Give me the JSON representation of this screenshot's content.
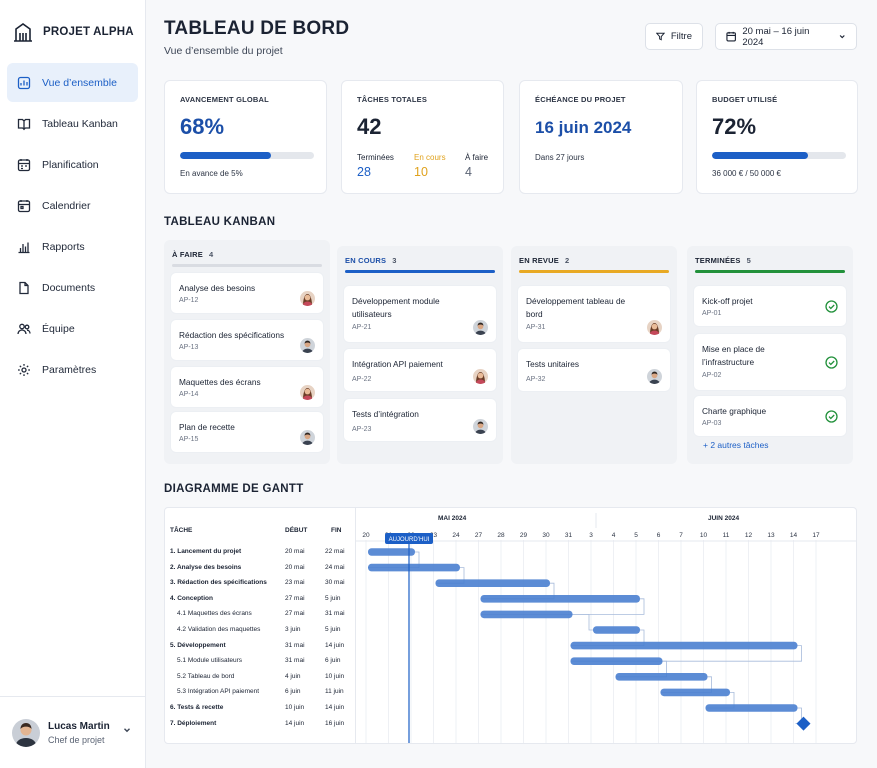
{
  "brand": {
    "name": "PROJET ALPHA",
    "logo_icon": "building-icon"
  },
  "nav": [
    {
      "label": "Vue d’ensemble",
      "icon": "dashboard-icon",
      "active": true
    },
    {
      "label": "Tableau Kanban",
      "icon": "book-icon",
      "active": false
    },
    {
      "label": "Planification",
      "icon": "planning-icon",
      "active": false
    },
    {
      "label": "Calendrier",
      "icon": "calendar-icon",
      "active": false
    },
    {
      "label": "Rapports",
      "icon": "bar-chart-icon",
      "active": false
    },
    {
      "label": "Documents",
      "icon": "document-icon",
      "active": false
    },
    {
      "label": "Équipe",
      "icon": "team-icon",
      "active": false
    },
    {
      "label": "Paramètres",
      "icon": "gear-icon",
      "active": false
    }
  ],
  "user": {
    "name": "Lucas Martin",
    "role": "Chef de projet"
  },
  "header": {
    "title": "TABLEAU DE BORD",
    "subtitle": "Vue d’ensemble du projet",
    "filter_label": "Filtre",
    "date_range": "20 mai – 16 juin 2024"
  },
  "cards": {
    "progress": {
      "label": "AVANCEMENT GLOBAL",
      "value": "68%",
      "fraction": 0.68,
      "note": "En avance de 5%"
    },
    "tasks": {
      "label": "TÂCHES TOTALES",
      "value": "42",
      "stats": [
        {
          "label": "Terminées",
          "value": "28",
          "color": "#1c5fc6"
        },
        {
          "label": "En cours",
          "value": "10",
          "color": "#e0a21d"
        },
        {
          "label": "À faire",
          "value": "4",
          "color": "#5b6474"
        }
      ]
    },
    "deadline": {
      "label": "ÉCHÉANCE DU PROJET",
      "value": "16 juin 2024",
      "note": "Dans 27 jours"
    },
    "budget": {
      "label": "BUDGET UTILISÉ",
      "value": "72%",
      "fraction": 0.72,
      "note": "36 000 € / 50 000 €"
    }
  },
  "kanban": {
    "title": "TABLEAU KANBAN",
    "columns": [
      {
        "title": "À FAIRE",
        "count": "4",
        "color": "#d9dce2",
        "title_color": "#1b2333",
        "cards": [
          {
            "title": "Analyse des besoins",
            "id": "AP-12",
            "assignee": "woman"
          },
          {
            "title": "Rédaction des spécifications",
            "id": "AP-13",
            "assignee": "man"
          },
          {
            "title": "Maquettes des écrans",
            "id": "AP-14",
            "assignee": "woman"
          },
          {
            "title": "Plan de recette",
            "id": "AP-15",
            "assignee": "man"
          }
        ]
      },
      {
        "title": "EN COURS",
        "count": "3",
        "color": "#1c5fc6",
        "title_color": "#1c4fa8",
        "cards": [
          {
            "title": "Développement module utilisateurs",
            "id": "AP-21",
            "assignee": "man"
          },
          {
            "title": "Intégration API paiement",
            "id": "AP-22",
            "assignee": "woman"
          },
          {
            "title": "Tests d’intégration",
            "id": "AP-23",
            "assignee": "man"
          }
        ]
      },
      {
        "title": "EN REVUE",
        "count": "2",
        "color": "#e8a923",
        "title_color": "#1b2333",
        "cards": [
          {
            "title": "Développement tableau de bord",
            "id": "AP-31",
            "assignee": "woman"
          },
          {
            "title": "Tests unitaires",
            "id": "AP-32",
            "assignee": "man"
          }
        ]
      },
      {
        "title": "TERMINÉES",
        "count": "5",
        "color": "#22913b",
        "title_color": "#1b2333",
        "cards": [
          {
            "title": "Kick-off projet",
            "id": "AP-01",
            "done": true
          },
          {
            "title": "Mise en place de l’infrastructure",
            "id": "AP-02",
            "done": true
          },
          {
            "title": "Charte graphique",
            "id": "AP-03",
            "done": true
          }
        ],
        "more": "+ 2 autres tâches"
      }
    ]
  },
  "gantt": {
    "title": "DIAGRAMME DE GANTT",
    "headers": {
      "task": "TÂCHE",
      "start": "DÉBUT",
      "end": "FIN"
    },
    "months": [
      {
        "label": "MAI 2024"
      },
      {
        "label": "JUIN 2024"
      }
    ],
    "days": [
      "20",
      "21",
      "22",
      "23",
      "24",
      "27",
      "28",
      "29",
      "30",
      "31",
      "3",
      "4",
      "5",
      "6",
      "7",
      "10",
      "11",
      "12",
      "13",
      "14",
      "17"
    ],
    "today_label": "AUJOURD’HUI",
    "rows": [
      {
        "name": "1. Lancement du projet",
        "start": "20 mai",
        "end": "22 mai",
        "level": 0
      },
      {
        "name": "2. Analyse des besoins",
        "start": "20 mai",
        "end": "24 mai",
        "level": 0
      },
      {
        "name": "3. Rédaction des spécifications",
        "start": "23 mai",
        "end": "30 mai",
        "level": 0
      },
      {
        "name": "4. Conception",
        "start": "27 mai",
        "end": "5 juin",
        "level": 0
      },
      {
        "name": "4.1 Maquettes des écrans",
        "start": "27 mai",
        "end": "31 mai",
        "level": 1
      },
      {
        "name": "4.2 Validation des maquettes",
        "start": "3 juin",
        "end": "5 juin",
        "level": 1
      },
      {
        "name": "5. Développement",
        "start": "31 mai",
        "end": "14 juin",
        "level": 0
      },
      {
        "name": "5.1 Module utilisateurs",
        "start": "31 mai",
        "end": "6 juin",
        "level": 1
      },
      {
        "name": "5.2 Tableau de bord",
        "start": "4 juin",
        "end": "10 juin",
        "level": 1
      },
      {
        "name": "5.3 Intégration API paiement",
        "start": "6 juin",
        "end": "11 juin",
        "level": 1
      },
      {
        "name": "6. Tests & recette",
        "start": "10 juin",
        "end": "14 juin",
        "level": 0
      },
      {
        "name": "7. Déploiement",
        "start": "14 juin",
        "end": "16 juin",
        "level": 0
      }
    ],
    "bar_color": "#4a7fd0",
    "milestone_color": "#1c5fc6"
  }
}
